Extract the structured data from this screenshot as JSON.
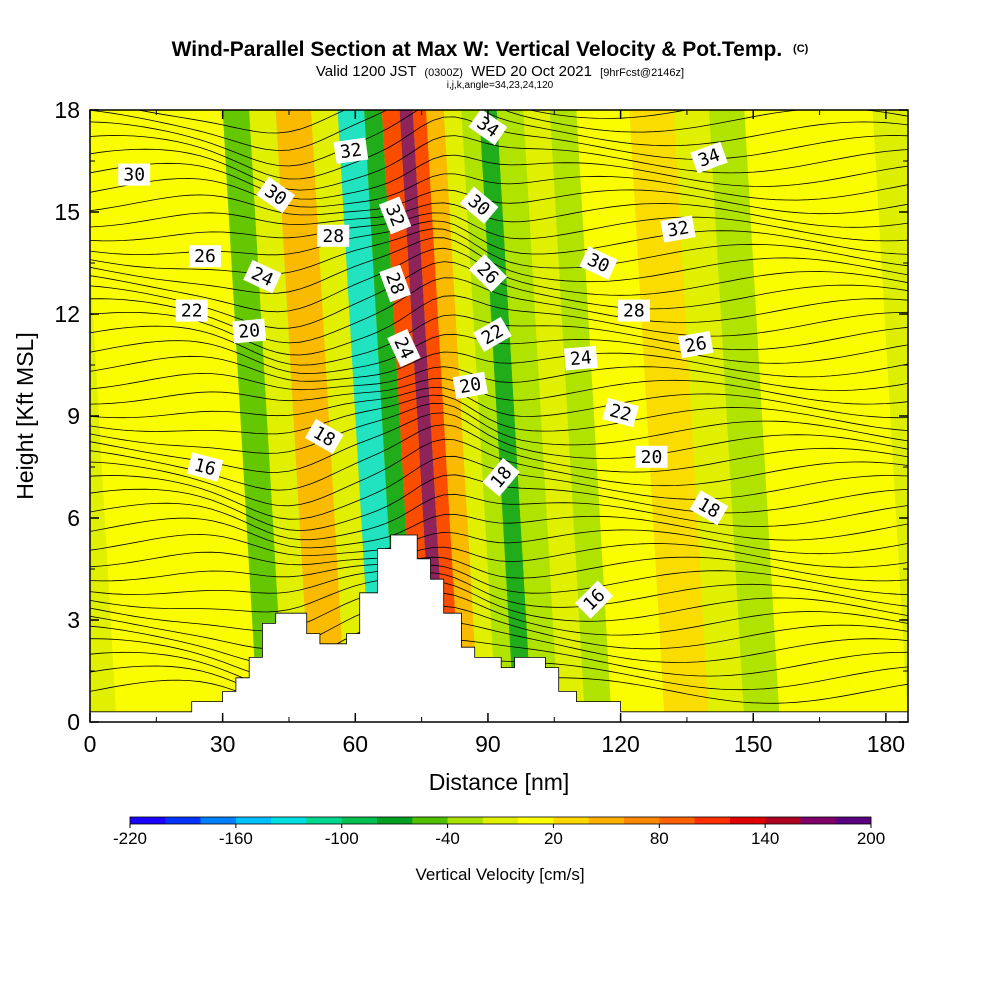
{
  "chart_data": {
    "type": "heatmap",
    "title": "Wind-Parallel Section at Max W: Vertical Velocity & Pot.Temp.",
    "title_suffix": "(C)",
    "subtitle_main_a": "Valid 1200 JST",
    "subtitle_small_a": "(0300Z)",
    "subtitle_main_b": "WED 20 Oct 2021",
    "subtitle_small_b": "[9hrFcst@2146z]",
    "subtitle_line2": "i,j,k,angle=34,23,24,120",
    "xlabel": "Distance [nm]",
    "ylabel": "Height [Kft MSL]",
    "xlim": [
      0,
      185
    ],
    "ylim": [
      0,
      18
    ],
    "x_ticks": [
      "0",
      "30",
      "60",
      "90",
      "120",
      "150",
      "180"
    ],
    "y_ticks": [
      "0",
      "3",
      "6",
      "9",
      "12",
      "15",
      "18"
    ],
    "colorbar": {
      "title": "Vertical Velocity [cm/s]",
      "tick_labels": [
        "-220",
        "-160",
        "-100",
        "-40",
        "20",
        "80",
        "140",
        "200"
      ],
      "colors": [
        "#1a00ff",
        "#0033ff",
        "#0080ff",
        "#00c0ff",
        "#00e0e0",
        "#00d890",
        "#00c050",
        "#00a020",
        "#50c000",
        "#a8e000",
        "#e0f000",
        "#ffff00",
        "#ffd800",
        "#ffb000",
        "#ff8800",
        "#ff6000",
        "#ff3000",
        "#e00000",
        "#b00020",
        "#80006a",
        "#5a0080"
      ]
    },
    "background_color": "#ddee00",
    "velocity_bands": [
      {
        "x0": 0,
        "x1": 6,
        "value": 10
      },
      {
        "x0": 6,
        "x1": 15,
        "value": 25
      },
      {
        "x0": 15,
        "x1": 30,
        "value": 25
      },
      {
        "x0": 30,
        "x1": 38,
        "value": 30
      },
      {
        "x0": 38,
        "x1": 44,
        "value": -50
      },
      {
        "x0": 44,
        "x1": 50,
        "value": 10
      },
      {
        "x0": 50,
        "x1": 58,
        "value": 60
      },
      {
        "x0": 58,
        "x1": 64,
        "value": 10
      },
      {
        "x0": 64,
        "x1": 70,
        "value": -130
      },
      {
        "x0": 70,
        "x1": 74,
        "value": -80
      },
      {
        "x0": 74,
        "x1": 78,
        "value": 130
      },
      {
        "x0": 78,
        "x1": 81,
        "value": 210
      },
      {
        "x0": 81,
        "x1": 84,
        "value": 140
      },
      {
        "x0": 84,
        "x1": 88,
        "value": 60
      },
      {
        "x0": 88,
        "x1": 92,
        "value": 10
      },
      {
        "x0": 92,
        "x1": 96,
        "value": -30
      },
      {
        "x0": 96,
        "x1": 100,
        "value": -70
      },
      {
        "x0": 100,
        "x1": 106,
        "value": -30
      },
      {
        "x0": 106,
        "x1": 112,
        "value": 10
      },
      {
        "x0": 112,
        "x1": 118,
        "value": -30
      },
      {
        "x0": 118,
        "x1": 130,
        "value": 30
      },
      {
        "x0": 130,
        "x1": 140,
        "value": 50
      },
      {
        "x0": 140,
        "x1": 148,
        "value": 10
      },
      {
        "x0": 148,
        "x1": 156,
        "value": -20
      },
      {
        "x0": 156,
        "x1": 172,
        "value": 20
      },
      {
        "x0": 172,
        "x1": 185,
        "value": 30
      }
    ],
    "terrain": [
      [
        0,
        0.3
      ],
      [
        23,
        0.3
      ],
      [
        23,
        0.6
      ],
      [
        30,
        0.6
      ],
      [
        30,
        0.9
      ],
      [
        33,
        0.9
      ],
      [
        33,
        1.3
      ],
      [
        36,
        1.3
      ],
      [
        36,
        1.9
      ],
      [
        39,
        1.9
      ],
      [
        39,
        2.9
      ],
      [
        42,
        2.9
      ],
      [
        42,
        3.2
      ],
      [
        49,
        3.2
      ],
      [
        49,
        2.6
      ],
      [
        52,
        2.6
      ],
      [
        52,
        2.3
      ],
      [
        58,
        2.3
      ],
      [
        58,
        2.6
      ],
      [
        61,
        2.6
      ],
      [
        61,
        3.8
      ],
      [
        65,
        3.8
      ],
      [
        65,
        5.1
      ],
      [
        68,
        5.1
      ],
      [
        68,
        5.5
      ],
      [
        74,
        5.5
      ],
      [
        74,
        4.8
      ],
      [
        77,
        4.8
      ],
      [
        77,
        4.2
      ],
      [
        80,
        4.2
      ],
      [
        80,
        3.2
      ],
      [
        84,
        3.2
      ],
      [
        84,
        2.2
      ],
      [
        87,
        2.2
      ],
      [
        87,
        1.9
      ],
      [
        93,
        1.9
      ],
      [
        93,
        1.6
      ],
      [
        96,
        1.6
      ],
      [
        96,
        1.9
      ],
      [
        103,
        1.9
      ],
      [
        103,
        1.6
      ],
      [
        106,
        1.6
      ],
      [
        106,
        0.9
      ],
      [
        110,
        0.9
      ],
      [
        110,
        0.6
      ],
      [
        120,
        0.6
      ],
      [
        120,
        0.3
      ],
      [
        185,
        0.3
      ]
    ],
    "contour_labels": [
      {
        "text": "30",
        "x": 10,
        "y": 16.1,
        "angle": 0
      },
      {
        "text": "32",
        "x": 59,
        "y": 16.8,
        "angle": -8
      },
      {
        "text": "34",
        "x": 90,
        "y": 17.5,
        "angle": 35
      },
      {
        "text": "34",
        "x": 140,
        "y": 16.6,
        "angle": -20
      },
      {
        "text": "30",
        "x": 42,
        "y": 15.5,
        "angle": 35
      },
      {
        "text": "32",
        "x": 69,
        "y": 14.9,
        "angle": 68
      },
      {
        "text": "30",
        "x": 88,
        "y": 15.2,
        "angle": 40
      },
      {
        "text": "32",
        "x": 133,
        "y": 14.5,
        "angle": -10
      },
      {
        "text": "28",
        "x": 55,
        "y": 14.3,
        "angle": 0
      },
      {
        "text": "26",
        "x": 26,
        "y": 13.7,
        "angle": 0
      },
      {
        "text": "24",
        "x": 39,
        "y": 13.1,
        "angle": 25
      },
      {
        "text": "28",
        "x": 69,
        "y": 12.9,
        "angle": 70
      },
      {
        "text": "26",
        "x": 90,
        "y": 13.2,
        "angle": 45
      },
      {
        "text": "30",
        "x": 115,
        "y": 13.5,
        "angle": 25
      },
      {
        "text": "22",
        "x": 23,
        "y": 12.1,
        "angle": 0
      },
      {
        "text": "28",
        "x": 123,
        "y": 12.1,
        "angle": 0
      },
      {
        "text": "20",
        "x": 36,
        "y": 11.5,
        "angle": -5
      },
      {
        "text": "24",
        "x": 71,
        "y": 11.0,
        "angle": 65
      },
      {
        "text": "22",
        "x": 91,
        "y": 11.4,
        "angle": -30
      },
      {
        "text": "26",
        "x": 137,
        "y": 11.1,
        "angle": -10
      },
      {
        "text": "24",
        "x": 111,
        "y": 10.7,
        "angle": -5
      },
      {
        "text": "20",
        "x": 86,
        "y": 9.9,
        "angle": -10
      },
      {
        "text": "22",
        "x": 120,
        "y": 9.1,
        "angle": 15
      },
      {
        "text": "18",
        "x": 53,
        "y": 8.4,
        "angle": 30
      },
      {
        "text": "20",
        "x": 127,
        "y": 7.8,
        "angle": 0
      },
      {
        "text": "16",
        "x": 26,
        "y": 7.5,
        "angle": 15
      },
      {
        "text": "18",
        "x": 93,
        "y": 7.2,
        "angle": -50
      },
      {
        "text": "18",
        "x": 140,
        "y": 6.3,
        "angle": 30
      },
      {
        "text": "16",
        "x": 114,
        "y": 3.6,
        "angle": -45
      }
    ]
  }
}
